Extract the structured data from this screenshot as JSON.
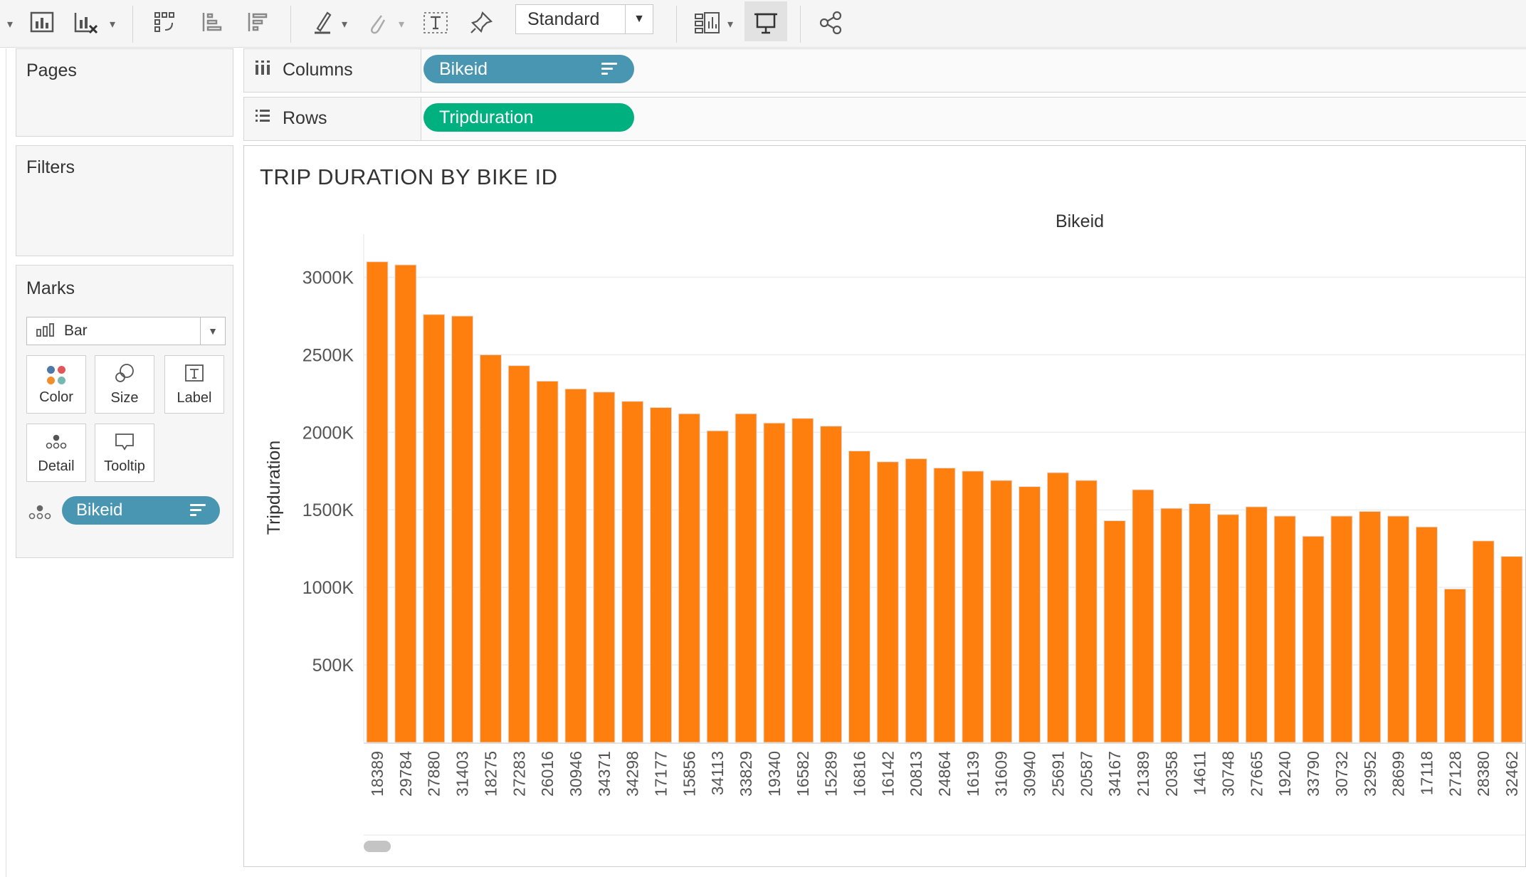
{
  "toolbar": {
    "view_mode": "Standard",
    "icons": [
      "add-chart-icon",
      "clear-sheet-icon",
      "swap-icon",
      "sort-ascending-icon",
      "sort-descending-icon",
      "highlight-icon",
      "attach-icon",
      "text-box-icon",
      "pin-icon",
      "show-me-icon",
      "presentation-icon",
      "share-icon"
    ]
  },
  "sidebar": {
    "pages_title": "Pages",
    "filters_title": "Filters",
    "marks_title": "Marks",
    "mark_type": "Bar",
    "mark_buttons": [
      {
        "label": "Color",
        "icon": "color-icon"
      },
      {
        "label": "Size",
        "icon": "size-icon"
      },
      {
        "label": "Label",
        "icon": "label-icon"
      },
      {
        "label": "Detail",
        "icon": "detail-icon"
      },
      {
        "label": "Tooltip",
        "icon": "tooltip-icon"
      }
    ],
    "detail_pill": "Bikeid"
  },
  "shelves": {
    "columns_label": "Columns",
    "columns_pill": "Bikeid",
    "rows_label": "Rows",
    "rows_pill": "Tripduration"
  },
  "colors": {
    "bar": "#ff7f0e",
    "columns_pill": "#4996b2",
    "rows_pill": "#00b180"
  },
  "chart_title": "TRIP DURATION BY BIKE ID",
  "chart_data": {
    "type": "bar",
    "title": "TRIP DURATION BY BIKE ID",
    "xlabel": "Bikeid",
    "ylabel": "Tripduration",
    "ylim": [
      0,
      3250000
    ],
    "yticks": [
      500000,
      1000000,
      1500000,
      2000000,
      2500000,
      3000000
    ],
    "ytick_labels": [
      "500K",
      "1000K",
      "1500K",
      "2000K",
      "2500K",
      "3000K"
    ],
    "grid": true,
    "categories": [
      "18389",
      "29784",
      "27880",
      "31403",
      "18275",
      "27283",
      "26016",
      "30946",
      "34371",
      "34298",
      "17177",
      "15856",
      "34113",
      "33829",
      "19340",
      "16582",
      "15289",
      "16816",
      "16142",
      "20813",
      "24864",
      "16139",
      "31609",
      "30940",
      "25691",
      "20587",
      "34167",
      "21389",
      "20358",
      "14611",
      "30748",
      "27665",
      "19240",
      "33790",
      "30732",
      "32952",
      "28699",
      "17118",
      "27128",
      "28380",
      "32462"
    ],
    "values": [
      3100000,
      3080000,
      2760000,
      2750000,
      2500000,
      2430000,
      2330000,
      2280000,
      2260000,
      2200000,
      2160000,
      2120000,
      2010000,
      2120000,
      2060000,
      2090000,
      2040000,
      1880000,
      1810000,
      1830000,
      1770000,
      1750000,
      1690000,
      1650000,
      1740000,
      1690000,
      1430000,
      1630000,
      1510000,
      1540000,
      1470000,
      1520000,
      1460000,
      1330000,
      1460000,
      1490000,
      1460000,
      1390000,
      990000,
      1300000,
      1200000
    ]
  }
}
